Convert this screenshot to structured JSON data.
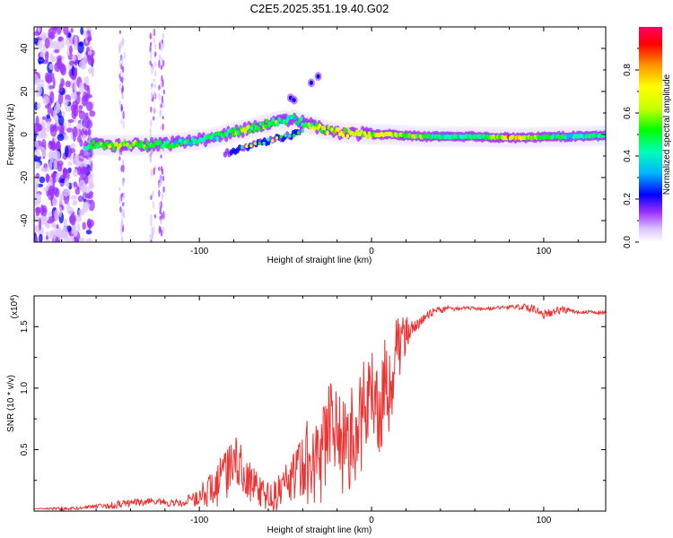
{
  "page_title": "C2E5.2025.351.19.40.G02",
  "chart_data": [
    {
      "type": "heatmap",
      "title": "C2E5.2025.351.19.40.G02",
      "xlabel": "Height of straight line (km)",
      "ylabel": "Frequency (Hz)",
      "xlim": [
        -196,
        136
      ],
      "ylim": [
        -50,
        50
      ],
      "xticks": [
        -100,
        0,
        100
      ],
      "xtick_labels": [
        "-100",
        "0",
        "100"
      ],
      "yticks": [
        -40,
        -20,
        0,
        20,
        40
      ],
      "ytick_labels": [
        "-40",
        "-20",
        "0",
        "20",
        "40"
      ],
      "colorbar": {
        "label": "Normalized spectral amplitude",
        "ticks": [
          0.0,
          0.2,
          0.4,
          0.6,
          0.8
        ],
        "tick_labels": [
          "0.0",
          "0.2",
          "0.4",
          "0.6",
          "0.8"
        ],
        "colormap": [
          "#ffffff",
          "#dcc6ff",
          "#9b30ff",
          "#0000ff",
          "#00b4ff",
          "#00ffb4",
          "#00ff00",
          "#c8ff00",
          "#ffff00",
          "#ff9600",
          "#ff0000",
          "#ff0064"
        ]
      },
      "ridge": {
        "x": [
          -166,
          -150,
          -135,
          -120,
          -105,
          -95,
          -85,
          -75,
          -65,
          -55,
          -45,
          -38,
          -30,
          -20,
          -10,
          0,
          10,
          20,
          30,
          40,
          50,
          60,
          70,
          80,
          90,
          100,
          110,
          120,
          136
        ],
        "y": [
          -5,
          -5,
          -5,
          -4.5,
          -3,
          -2,
          0,
          2,
          4,
          6,
          7,
          5,
          3,
          1,
          0.5,
          0,
          0,
          -0.5,
          -1,
          -1,
          -1,
          -1,
          -1.2,
          -1.5,
          -1.5,
          -1.2,
          -1,
          -0.8,
          -0.5
        ],
        "amplitude": [
          0.5,
          0.7,
          0.6,
          0.55,
          0.5,
          0.5,
          0.55,
          0.6,
          0.6,
          0.55,
          0.5,
          0.6,
          0.65,
          0.75,
          0.7,
          0.75,
          0.7,
          0.65,
          0.55,
          0.5,
          0.5,
          0.55,
          0.6,
          0.8,
          0.7,
          0.55,
          0.5,
          0.5,
          0.5
        ]
      },
      "secondary_branch": {
        "x": [
          -85,
          -75,
          -65,
          -55,
          -45,
          -40
        ],
        "y": [
          -9,
          -6,
          -4,
          -2,
          0,
          2
        ]
      },
      "outliers": {
        "x": [
          -47,
          -45,
          -35,
          -31
        ],
        "y": [
          17,
          16,
          24,
          27
        ]
      }
    },
    {
      "type": "line",
      "xlabel": "Height of straight line (km)",
      "ylabel": "SNR (10 * v/v)",
      "y_scale_label": "(x10",
      "y_scale_exponent": "4",
      "xlim": [
        -196,
        136
      ],
      "ylim": [
        0,
        1.75
      ],
      "xticks": [
        -100,
        0,
        100
      ],
      "xtick_labels": [
        "-100",
        "0",
        "100"
      ],
      "yticks": [
        0.5,
        1.0,
        1.5
      ],
      "ytick_labels": [
        "0.5",
        "1.0",
        "1.5"
      ],
      "series": [
        {
          "name": "SNR",
          "color": "#ee3333",
          "x": [
            -196,
            -180,
            -170,
            -160,
            -150,
            -140,
            -130,
            -120,
            -110,
            -100,
            -92,
            -85,
            -78,
            -72,
            -65,
            -58,
            -50,
            -44,
            -40,
            -35,
            -30,
            -25,
            -20,
            -15,
            -10,
            -5,
            0,
            5,
            10,
            15,
            20,
            25,
            30,
            35,
            40,
            50,
            60,
            70,
            80,
            90,
            95,
            100,
            105,
            110,
            115,
            120,
            125,
            130,
            136
          ],
          "values": [
            0.02,
            0.02,
            0.03,
            0.04,
            0.05,
            0.07,
            0.08,
            0.07,
            0.07,
            0.12,
            0.2,
            0.3,
            0.4,
            0.25,
            0.15,
            0.1,
            0.2,
            0.35,
            0.45,
            0.4,
            0.35,
            0.7,
            0.7,
            0.5,
            0.65,
            0.8,
            1.0,
            0.95,
            1.1,
            1.3,
            1.45,
            1.5,
            1.58,
            1.62,
            1.64,
            1.65,
            1.65,
            1.65,
            1.66,
            1.66,
            1.64,
            1.6,
            1.62,
            1.64,
            1.63,
            1.62,
            1.62,
            1.62,
            1.61
          ],
          "noise": [
            0,
            0.01,
            0.01,
            0.01,
            0.02,
            0.02,
            0.02,
            0.02,
            0.02,
            0.05,
            0.12,
            0.15,
            0.15,
            0.12,
            0.1,
            0.08,
            0.12,
            0.15,
            0.2,
            0.25,
            0.25,
            0.25,
            0.25,
            0.28,
            0.28,
            0.3,
            0.3,
            0.3,
            0.3,
            0.2,
            0.1,
            0.05,
            0.03,
            0.02,
            0.02,
            0.01,
            0.01,
            0.01,
            0.01,
            0.02,
            0.02,
            0.03,
            0.02,
            0.02,
            0.02,
            0.01,
            0.01,
            0.01,
            0.01
          ]
        }
      ]
    }
  ]
}
